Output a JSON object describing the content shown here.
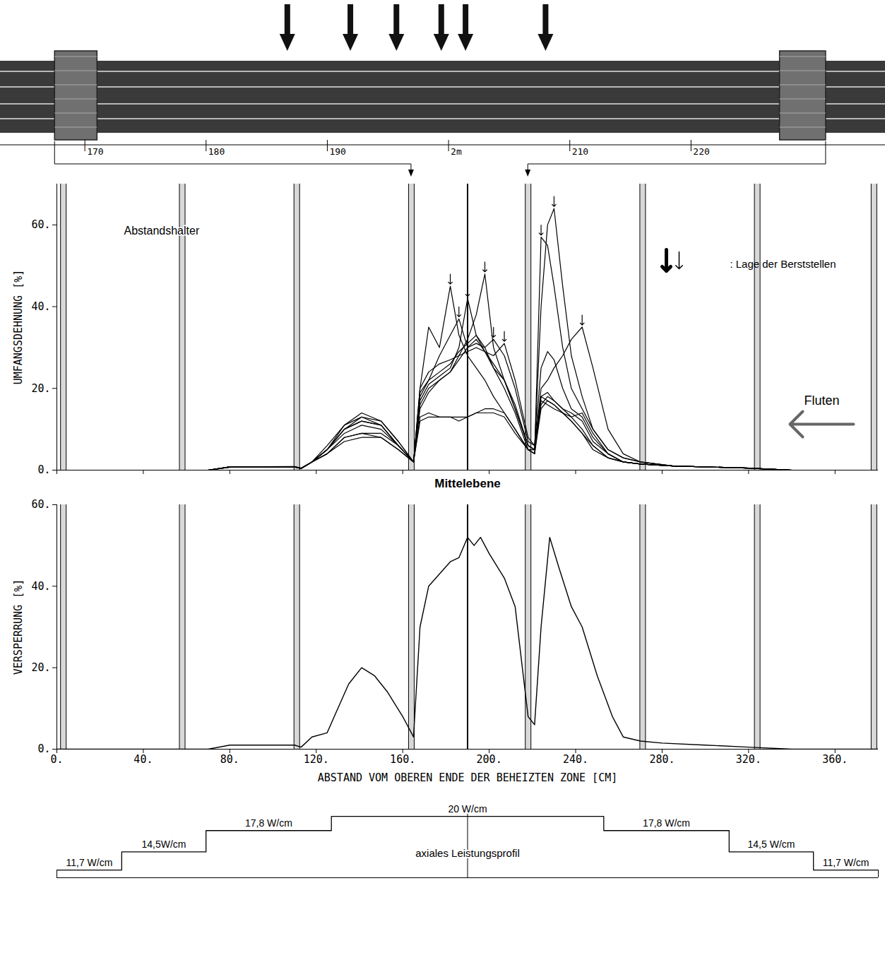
{
  "photo": {
    "type": "photo_schematic",
    "ruler": {
      "xlim": [
        163,
        236
      ],
      "xticks": [
        170,
        180,
        190,
        {
          "value": 200,
          "label": "2m"
        },
        210,
        220
      ]
    },
    "burst_arrows": [
      186.7,
      191.9,
      195.7,
      199.4,
      201.4,
      208.0
    ],
    "spacer_grids": [
      [
        167.5,
        171
      ],
      [
        227.3,
        231.1
      ]
    ]
  },
  "chart_data": [
    {
      "type": "line",
      "y_label": "UMFANGSDEHNUNG [%]",
      "xlim": [
        0,
        380
      ],
      "ylim": [
        0,
        70
      ],
      "xticks": [
        0,
        40,
        80,
        120,
        160,
        200,
        240,
        280,
        320,
        360
      ],
      "yticks": [
        {
          "value": 0,
          "label": "0."
        },
        {
          "value": 20,
          "label": "20."
        },
        {
          "value": 40,
          "label": "40."
        },
        {
          "value": 60,
          "label": "60."
        }
      ],
      "tick_labels": "y",
      "color": "#000000",
      "x": [
        0,
        70,
        80,
        110,
        113,
        118,
        125,
        133,
        141,
        150,
        158,
        165,
        168,
        172,
        177,
        182,
        186,
        190,
        194,
        198,
        202,
        207,
        212,
        218,
        221,
        224,
        227,
        230,
        234,
        238,
        243,
        248,
        255,
        262,
        270,
        285,
        320,
        340,
        380
      ],
      "series": [
        {
          "values": [
            0,
            0,
            0.8,
            0.8,
            0.4,
            2,
            5,
            10,
            13,
            12,
            7,
            2,
            20,
            35,
            30,
            45,
            33,
            28,
            25,
            22,
            18,
            14,
            10,
            5,
            4,
            17,
            16,
            15,
            14,
            12,
            9,
            6,
            3,
            2,
            1.5,
            1,
            0.5,
            0,
            0
          ]
        },
        {
          "values": [
            0,
            0,
            0.8,
            0.9,
            0.5,
            2,
            5,
            11,
            14,
            12,
            7,
            2,
            18,
            22,
            28,
            33,
            37,
            30,
            32,
            29,
            26,
            22,
            15,
            6,
            5,
            16,
            18,
            17,
            15,
            13,
            10,
            6,
            3,
            2,
            1.5,
            1,
            0.5,
            0,
            0
          ]
        },
        {
          "values": [
            0,
            0,
            0.7,
            0.8,
            0.4,
            2,
            6,
            11,
            13,
            11,
            6,
            2,
            17,
            21,
            23,
            25,
            30,
            42,
            33,
            30,
            25,
            20,
            14,
            5,
            4,
            15,
            17,
            16,
            14,
            12,
            9,
            5,
            3,
            2,
            1.5,
            1,
            0.5,
            0,
            0
          ]
        },
        {
          "values": [
            0,
            0,
            0.8,
            0.8,
            0.4,
            2,
            5,
            10,
            12,
            11,
            6,
            2,
            16,
            20,
            22,
            24,
            28,
            32,
            38,
            48,
            30,
            22,
            15,
            6,
            5,
            18,
            19,
            17,
            15,
            14,
            12,
            7,
            4,
            2,
            1.5,
            1,
            0.5,
            0,
            0
          ]
        },
        {
          "values": [
            0,
            0,
            0.8,
            0.8,
            0.5,
            2,
            5,
            9,
            11,
            10,
            6,
            2,
            15,
            19,
            22,
            24,
            27,
            30,
            31,
            30,
            32,
            28,
            20,
            7,
            6,
            25,
            29,
            27,
            20,
            15,
            13,
            8,
            4,
            2,
            1.5,
            1,
            0.5,
            0,
            0
          ]
        },
        {
          "values": [
            0,
            0,
            0.8,
            0.8,
            0.4,
            2,
            4,
            8,
            9,
            9,
            6,
            2,
            20,
            24,
            26,
            27,
            28,
            29,
            30,
            29,
            28,
            31,
            22,
            8,
            6,
            18,
            17,
            16,
            14,
            13,
            14,
            9,
            4,
            2,
            1.5,
            1,
            0.5,
            0,
            0
          ]
        },
        {
          "values": [
            0,
            0,
            0.7,
            0.7,
            0.4,
            2,
            4,
            7,
            8,
            8,
            5,
            2,
            13,
            14,
            13,
            13,
            13,
            13,
            14,
            15,
            15,
            14,
            10,
            5,
            4,
            57,
            55,
            45,
            30,
            20,
            15,
            10,
            5,
            3,
            2,
            1,
            0.5,
            0,
            0
          ]
        },
        {
          "values": [
            0,
            0,
            0.7,
            0.8,
            0.4,
            2,
            4,
            8,
            9,
            8,
            5,
            2,
            12,
            13,
            13,
            13,
            12,
            13,
            14,
            14,
            14,
            13,
            9,
            5,
            5,
            40,
            60,
            64,
            45,
            28,
            18,
            10,
            5,
            3,
            2,
            1,
            0.5,
            0,
            0
          ]
        },
        {
          "values": [
            0,
            0,
            0.8,
            0.8,
            0.4,
            2,
            5,
            10,
            12,
            11,
            6,
            2,
            19,
            22,
            24,
            26,
            29,
            31,
            33,
            29,
            25,
            22,
            16,
            6,
            5,
            20,
            22,
            25,
            28,
            32,
            35,
            25,
            10,
            4,
            2,
            1,
            0.5,
            0,
            0
          ]
        }
      ],
      "bursts": {
        "label": ": Lage der Berststellen",
        "points": [
          {
            "x": 182,
            "y": 45
          },
          {
            "x": 186,
            "y": 37
          },
          {
            "x": 190,
            "y": 42
          },
          {
            "x": 198,
            "y": 48
          },
          {
            "x": 202,
            "y": 32
          },
          {
            "x": 207,
            "y": 31
          },
          {
            "x": 224,
            "y": 57
          },
          {
            "x": 230,
            "y": 64
          },
          {
            "x": 243,
            "y": 35
          }
        ]
      },
      "spacers": {
        "label": "Abstandshalter",
        "x": [
          3,
          58,
          111,
          164,
          218,
          271,
          324,
          378
        ]
      },
      "midplane": {
        "label": "Mittelebene",
        "x": 190
      },
      "flood_label": "Fluten"
    },
    {
      "type": "line",
      "y_label": "VERSPERRUNG [%]",
      "x_label": "ABSTAND VOM OBEREN ENDE DER BEHEIZTEN ZONE [CM]",
      "xlim": [
        0,
        380
      ],
      "ylim": [
        0,
        60
      ],
      "xticks": [
        {
          "value": 0,
          "label": "0."
        },
        {
          "value": 40,
          "label": "40."
        },
        {
          "value": 80,
          "label": "80."
        },
        {
          "value": 120,
          "label": "120."
        },
        {
          "value": 160,
          "label": "160."
        },
        {
          "value": 200,
          "label": "200."
        },
        {
          "value": 240,
          "label": "240."
        },
        {
          "value": 280,
          "label": "280."
        },
        {
          "value": 320,
          "label": "320."
        },
        {
          "value": 360,
          "label": "360."
        }
      ],
      "yticks": [
        {
          "value": 0,
          "label": "0."
        },
        {
          "value": 20,
          "label": "20."
        },
        {
          "value": 40,
          "label": "40."
        },
        {
          "value": 60,
          "label": "60."
        }
      ],
      "color": "#000000",
      "x": [
        0,
        70,
        80,
        110,
        113,
        118,
        125,
        130,
        135,
        141,
        147,
        153,
        160,
        165,
        168,
        172,
        177,
        182,
        186,
        190,
        193,
        196,
        200,
        207,
        212,
        218,
        221,
        224,
        228,
        232,
        238,
        243,
        250,
        257,
        262,
        270,
        280,
        300,
        320,
        340,
        380
      ],
      "values": [
        0,
        0,
        1,
        1,
        0.5,
        3,
        4,
        10,
        16,
        20,
        18,
        14,
        8,
        3,
        30,
        40,
        43,
        46,
        47,
        52,
        50,
        52,
        48,
        42,
        35,
        8,
        6,
        30,
        52,
        45,
        35,
        30,
        18,
        8,
        3,
        2,
        1.5,
        1,
        0.5,
        0,
        0
      ],
      "spacers": [
        3,
        58,
        111,
        164,
        218,
        271,
        324,
        378
      ],
      "midplane": 190
    },
    {
      "type": "step",
      "title": "axiales Leistungsprofil",
      "x": [
        0,
        30,
        69,
        127,
        253,
        311,
        350
      ],
      "values": [
        11.7,
        14.5,
        17.8,
        20,
        17.8,
        14.5,
        11.7
      ],
      "value_labels": [
        "11,7 W/cm",
        "14,5W/cm",
        "17,8 W/cm",
        "20 W/cm",
        "17,8 W/cm",
        "14,5 W/cm",
        "11,7 W/cm"
      ],
      "data_labels": true,
      "tick_labels": false,
      "xlim": [
        0,
        380
      ],
      "ylim": [
        10.5,
        21
      ],
      "color": "#000000",
      "midplane": 190
    }
  ]
}
